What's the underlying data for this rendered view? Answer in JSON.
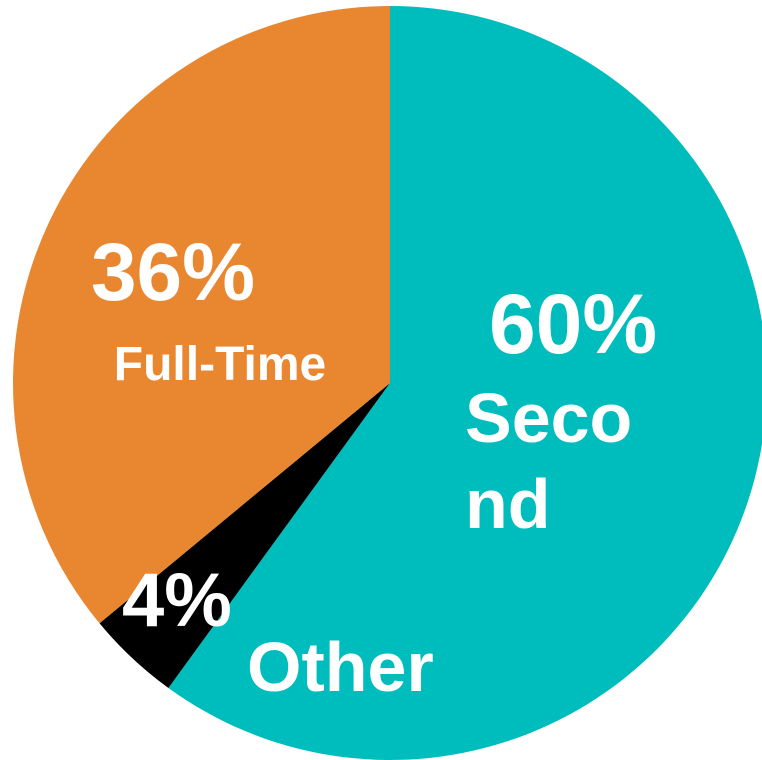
{
  "chart_data": {
    "type": "pie",
    "title": "",
    "start_angle_deg": 0,
    "direction": "clockwise",
    "legend": "none",
    "slices": [
      {
        "label": "Second",
        "label_lines": [
          "Seco",
          "nd"
        ],
        "value_label": "60%",
        "value": 60,
        "color": "#00BDBD"
      },
      {
        "label": "Other",
        "label_lines": [
          "Other"
        ],
        "value_label": "4%",
        "value": 4,
        "color": "#000000"
      },
      {
        "label": "Full-Time",
        "label_lines": [
          "Full-Time"
        ],
        "value_label": "36%",
        "value": 36,
        "color": "#E98731"
      }
    ]
  }
}
